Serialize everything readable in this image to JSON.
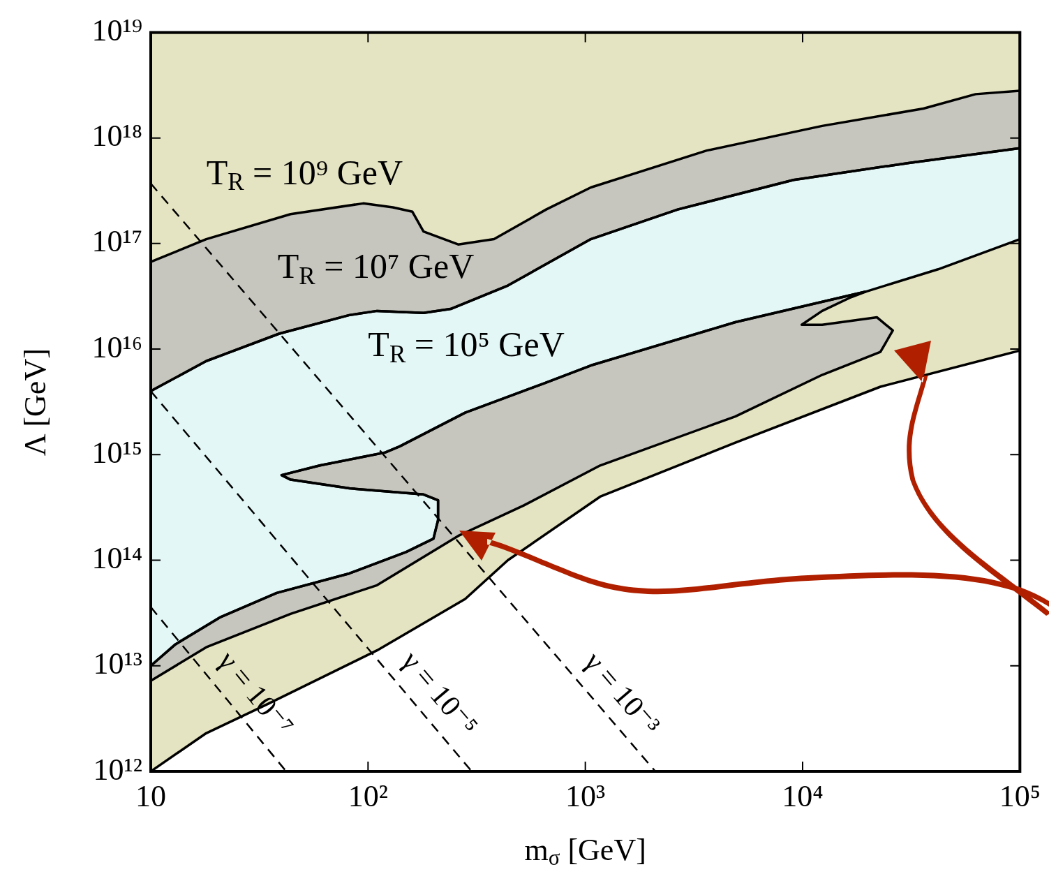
{
  "chart_data": {
    "type": "area",
    "xlabel": "m$_{σ}$ [GeV]",
    "ylabel": "Λ [GeV]",
    "log": "xy",
    "legend": false,
    "marker": "none",
    "xlim": [
      10,
      100000
    ],
    "xticks": [
      10,
      {
        "value": 100,
        "label": "10²"
      },
      {
        "value": 1000,
        "label": "10³"
      },
      {
        "value": 10000,
        "label": "10⁴"
      },
      {
        "value": 100000,
        "label": "10⁵"
      }
    ],
    "ylim": [
      1000000000000.0,
      1e+19
    ],
    "yticks": [
      {
        "value": 1000000000000.0,
        "label": "10¹²"
      },
      {
        "value": 10000000000000.0,
        "label": "10¹³"
      },
      {
        "value": 100000000000000.0,
        "label": "10¹⁴"
      },
      {
        "value": 1000000000000000.0,
        "label": "10¹⁵"
      },
      {
        "value": 1e+16,
        "label": "10¹⁶"
      },
      {
        "value": 1e+17,
        "label": "10¹⁷"
      },
      {
        "value": 1e+18,
        "label": "10¹⁸"
      },
      {
        "value": 1e+19,
        "label": "10¹⁹"
      }
    ],
    "series": [
      {
        "color": "#e5e4c2",
        "x": [
          10,
          18,
          35,
          110,
          280,
          440,
          1170,
          4900,
          22800,
          100000,
          100000,
          10
        ],
        "values": [
          1000000000000.0,
          2300000000000.0,
          4400000000000.0,
          14000000000000.0,
          43000000000000.0,
          100000000000000.0,
          400000000000000.0,
          1300000000000000.0,
          4400000000000000.0,
          9700000000000000.0,
          1e+19,
          1e+19
        ]
      },
      {
        "color": "#c6c6be",
        "x": [
          10,
          18,
          44,
          95,
          130,
          160,
          180,
          260,
          380,
          660,
          1060,
          3620,
          12300,
          36000,
          62500,
          100000,
          100000,
          30800,
          9080,
          2660,
          1060,
          440,
          240,
          180,
          110,
          82,
          39,
          18,
          10
        ],
        "values": [
          6.7e+16,
          1.1e+17,
          1.9e+17,
          2.4e+17,
          2.2e+17,
          2e+17,
          1.3e+17,
          9.8e+16,
          1.1e+17,
          2.1e+17,
          3.4e+17,
          7.6e+17,
          1.3e+18,
          1.9e+18,
          2.6e+18,
          2.8e+18,
          8e+17,
          5.8e+17,
          4e+17,
          2.1e+17,
          1.1e+17,
          4e+16,
          2.4e+16,
          2.2e+16,
          2.3e+16,
          2.1e+16,
          1.4e+16,
          7700000000000000.0,
          4000000000000000.0
        ]
      },
      {
        "color": "#e3f7f6",
        "x": [
          10,
          18,
          39,
          82,
          110,
          180,
          240,
          440,
          1060,
          2660,
          9080,
          30800,
          100000,
          100000,
          42000,
          19500,
          4900,
          1060,
          640,
          280,
          140,
          120,
          60,
          40,
          44,
          82,
          180,
          210,
          210,
          200,
          150,
          82,
          38,
          21,
          13,
          10
        ],
        "values": [
          4000000000000000.0,
          7700000000000000.0,
          1.4e+16,
          2.1e+16,
          2.3e+16,
          2.2e+16,
          2.4e+16,
          4e+16,
          1.1e+17,
          2.1e+17,
          4e+17,
          5.8e+17,
          8e+17,
          1.1e+17,
          5.7e+16,
          3.5e+16,
          1.8e+16,
          7000000000000000.0,
          4700000000000000.0,
          2500000000000000.0,
          1200000000000000.0,
          1050000000000000.0,
          790000000000000.0,
          640000000000000.0,
          580000000000000.0,
          480000000000000.0,
          420000000000000.0,
          370000000000000.0,
          240000000000000.0,
          160000000000000.0,
          120000000000000.0,
          75000000000000.0,
          49000000000000.0,
          29000000000000.0,
          16000000000000.0,
          10000000000000.0
        ]
      },
      {
        "color": "#c6c6be",
        "x": [
          10,
          18,
          44,
          110,
          260,
          520,
          1170,
          4900,
          12300,
          22800,
          26000,
          22000,
          12300,
          9900,
          12300,
          16700,
          19500,
          4900,
          1060,
          640,
          280,
          140,
          120,
          60,
          40,
          44,
          82,
          180,
          210,
          210,
          200,
          150,
          82,
          38,
          21,
          13,
          10
        ],
        "values": [
          7200000000000.0,
          15000000000000.0,
          31000000000000.0,
          58000000000000.0,
          170000000000000.0,
          330000000000000.0,
          790000000000000.0,
          2300000000000000.0,
          5700000000000000.0,
          9400000000000000.0,
          1.5e+16,
          2e+16,
          1.7e+16,
          1.7e+16,
          2.3e+16,
          3.1e+16,
          3.5e+16,
          1.8e+16,
          7000000000000000.0,
          4700000000000000.0,
          2500000000000000.0,
          1200000000000000.0,
          1050000000000000.0,
          790000000000000.0,
          640000000000000.0,
          580000000000000.0,
          480000000000000.0,
          420000000000000.0,
          370000000000000.0,
          240000000000000.0,
          160000000000000.0,
          120000000000000.0,
          75000000000000.0,
          49000000000000.0,
          29000000000000.0,
          16000000000000.0,
          10000000000000.0
        ]
      },
      {
        "type": "line",
        "name": "γ = 10⁻³",
        "color": "#000000",
        "line_style": "dashed",
        "x": [
          10,
          2100
        ],
        "values": [
          3.7e+17,
          1000000000000.0
        ]
      },
      {
        "type": "line",
        "name": "γ = 10⁻⁵",
        "color": "#000000",
        "line_style": "dashed",
        "x": [
          10,
          300
        ],
        "values": [
          4000000000000000.0,
          1000000000000.0
        ]
      },
      {
        "type": "line",
        "name": "γ = 10⁻⁷",
        "color": "#000000",
        "line_style": "dashed",
        "x": [
          10,
          42
        ],
        "values": [
          36000000000000.0,
          1000000000000.0
        ]
      }
    ],
    "annotations": [
      "T$_{R}$ = 10⁹ GeV",
      "T$_{R}$ = 10⁷ GeV",
      "T$_{R}$ = 10⁵ GeV"
    ]
  }
}
